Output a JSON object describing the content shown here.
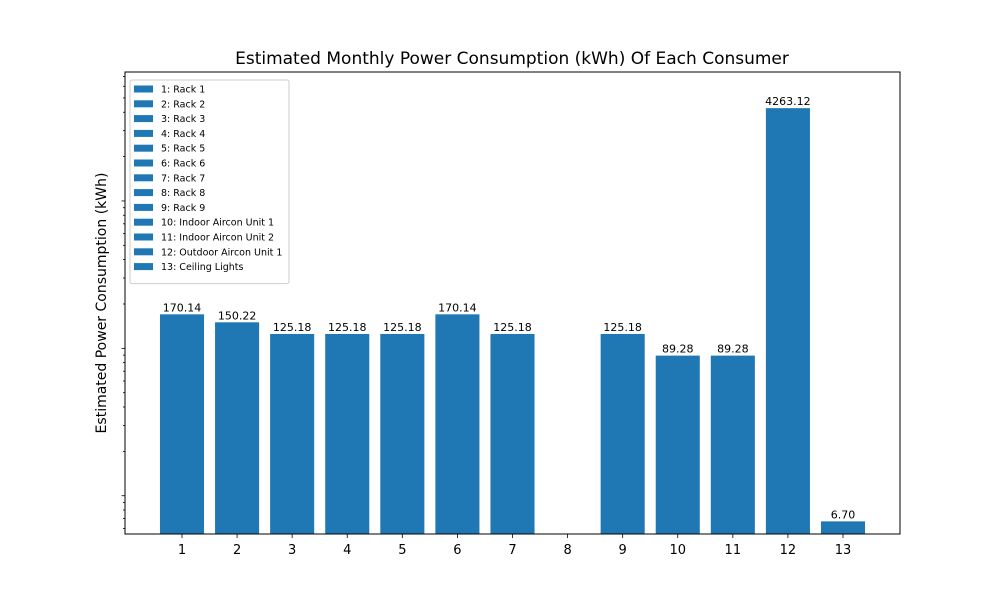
{
  "chart_data": {
    "type": "bar",
    "title": "Estimated Monthly Power Consumption (kWh) Of Each Consumer",
    "xlabel": "",
    "ylabel": "Estimated Power Consumption (kWh)",
    "yscale": "log",
    "ylim": [
      5.5,
      7500
    ],
    "grid": false,
    "legend_position": "top-left",
    "bar_color": "#1f77b4",
    "categories": [
      "1",
      "2",
      "3",
      "4",
      "5",
      "6",
      "7",
      "8",
      "9",
      "10",
      "11",
      "12",
      "13"
    ],
    "values": [
      170.14,
      150.22,
      125.18,
      125.18,
      125.18,
      170.14,
      125.18,
      0,
      125.18,
      89.28,
      89.28,
      4263.12,
      6.7
    ],
    "data_labels": [
      "170.14",
      "150.22",
      "125.18",
      "125.18",
      "125.18",
      "170.14",
      "125.18",
      "",
      "125.18",
      "89.28",
      "89.28",
      "4263.12",
      "6.70"
    ],
    "legend": [
      "1: Rack 1",
      "2: Rack 2",
      "3: Rack 3",
      "4: Rack 4",
      "5: Rack 5",
      "6: Rack 6",
      "7: Rack 7",
      "8: Rack 8",
      "9: Rack 9",
      "10: Indoor Aircon Unit 1",
      "11: Indoor Aircon Unit 2",
      "12: Outdoor Aircon Unit 1",
      "13: Ceiling Lights"
    ]
  }
}
